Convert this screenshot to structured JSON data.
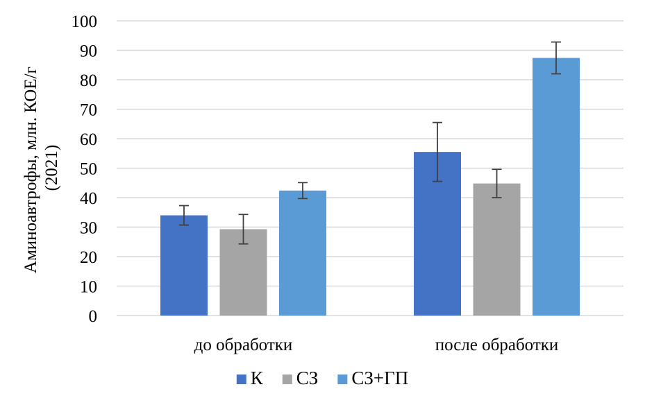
{
  "chart_data": {
    "type": "bar",
    "ylabel_lines": [
      "Аминоавтрофы, млн. КОЕ/г",
      "(2021)"
    ],
    "ylim": [
      0,
      100
    ],
    "yticks": [
      0,
      10,
      20,
      30,
      40,
      50,
      60,
      70,
      80,
      90,
      100
    ],
    "grid": true,
    "legend_position": "bottom",
    "categories": [
      "до обработки",
      "после обработки"
    ],
    "series": [
      {
        "name": "К",
        "color": "#4472C4",
        "values": [
          34,
          55.5
        ],
        "errors": [
          3.3,
          10
        ]
      },
      {
        "name": "СЗ",
        "color": "#A5A5A5",
        "values": [
          29.3,
          44.8
        ],
        "errors": [
          5,
          4.8
        ]
      },
      {
        "name": "СЗ+ГП",
        "color": "#5B9BD5",
        "values": [
          42.4,
          87.4
        ],
        "errors": [
          2.7,
          5.4
        ]
      }
    ]
  }
}
